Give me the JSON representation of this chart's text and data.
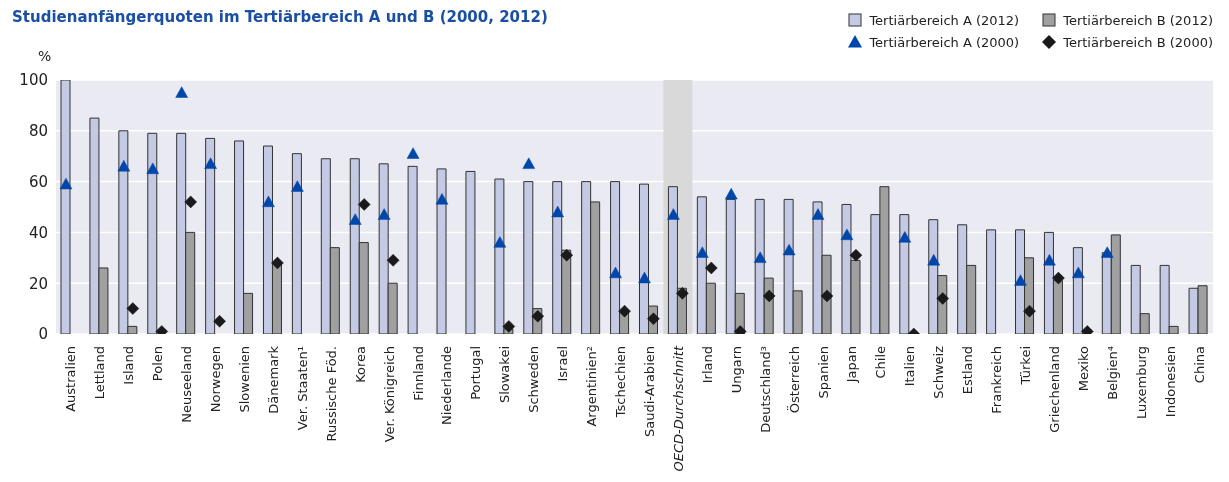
{
  "chart_data": {
    "type": "bar",
    "title": "Studienanfängerquoten im Tertiärbereich A und B (2000, 2012)",
    "ylabel": "%",
    "categories": [
      "Australien",
      "Lettland",
      "Island",
      "Polen",
      "Neuseeland",
      "Norwegen",
      "Slowenien",
      "Dänemark",
      "Ver. Staaten¹",
      "Russische Föd.",
      "Korea",
      "Ver. Königreich",
      "Finnland",
      "Niederlande",
      "Portugal",
      "Slowakei",
      "Schweden",
      "Israel",
      "Argentinien²",
      "Tschechien",
      "Saudi-Arabien",
      "OECD-Durchschnitt",
      "Irland",
      "Ungarn",
      "Deutschland³",
      "Österreich",
      "Spanien",
      "Japan",
      "Chile",
      "Italien",
      "Schweiz",
      "Estland",
      "Frankreich",
      "Türkei",
      "Griechenland",
      "Mexiko",
      "Belgien⁴",
      "Luxemburg",
      "Indonesien",
      "China"
    ],
    "series": [
      {
        "name": "Tertiärbereich A (2012)",
        "color": "#c5cae4",
        "values": [
          100,
          85,
          80,
          79,
          79,
          77,
          76,
          74,
          71,
          69,
          69,
          67,
          66,
          65,
          64,
          61,
          60,
          60,
          60,
          60,
          59,
          58,
          54,
          53,
          53,
          53,
          52,
          51,
          47,
          47,
          45,
          43,
          41,
          41,
          40,
          34,
          32,
          27,
          27,
          18
        ]
      },
      {
        "name": "Tertiärbereich B (2012)",
        "color": "#a0a0a0",
        "values": [
          null,
          26,
          3,
          null,
          40,
          null,
          16,
          28,
          null,
          34,
          36,
          20,
          null,
          null,
          null,
          2,
          10,
          33,
          52,
          9,
          11,
          18,
          20,
          16,
          22,
          17,
          31,
          29,
          58,
          null,
          23,
          27,
          null,
          30,
          21,
          null,
          39,
          8,
          3,
          19
        ]
      },
      {
        "name": "Tertiärbereich A (2000)",
        "type": "scatter",
        "marker": "triangle",
        "color": "#0047ab",
        "values": [
          59,
          null,
          66,
          65,
          95,
          67,
          null,
          52,
          58,
          null,
          45,
          47,
          71,
          53,
          null,
          36,
          67,
          48,
          null,
          24,
          22,
          47,
          32,
          55,
          30,
          33,
          47,
          39,
          null,
          38,
          29,
          null,
          null,
          21,
          29,
          24,
          32,
          null,
          null,
          null
        ]
      },
      {
        "name": "Tertiärbereich B (2000)",
        "type": "scatter",
        "marker": "diamond",
        "color": "#1a1a1a",
        "values": [
          null,
          null,
          10,
          1,
          52,
          5,
          null,
          28,
          null,
          null,
          51,
          29,
          null,
          null,
          null,
          3,
          7,
          31,
          null,
          9,
          6,
          16,
          26,
          1,
          15,
          null,
          15,
          31,
          null,
          0,
          14,
          null,
          null,
          9,
          22,
          1,
          null,
          null,
          null,
          null
        ]
      }
    ],
    "ylim": [
      0,
      100
    ],
    "yticks": [
      0,
      20,
      40,
      60,
      80,
      100
    ],
    "grid": "y",
    "legend": "top right",
    "bands": [
      {
        "axis": "x",
        "from": "OECD-Durchschnitt",
        "to": "OECD-Durchschnitt",
        "color": "#d9d9d9"
      }
    ]
  }
}
